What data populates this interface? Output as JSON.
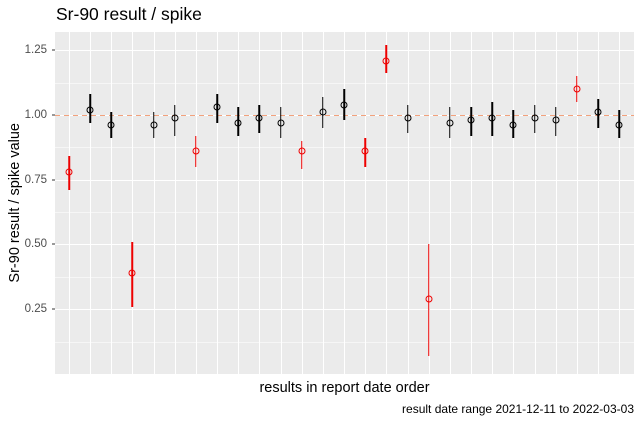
{
  "chart_data": {
    "type": "scatter",
    "subtype": "pointrange-with-error-bars",
    "title": "Sr-90 result / spike",
    "xlabel": "results in report date order",
    "ylabel": "Sr-90 result / spike value",
    "caption": "result date range 2021-12-11 to 2022-03-03",
    "legend": "none",
    "grid": true,
    "ylim": [
      0,
      1.32
    ],
    "yticks": [
      0.25,
      0.5,
      0.75,
      1.0,
      1.25
    ],
    "ytick_labels": [
      "0.25",
      "0.50",
      "0.75",
      "1.00",
      "1.25"
    ],
    "xtick_labels": [],
    "reference_line_y": 1.0,
    "colors": {
      "point_normal": "#000000",
      "point_flagged": "#ee0000",
      "reference_line": "#f2a17c",
      "panel_background": "#ebebeb",
      "gridline": "#ffffff",
      "tick_label": "#4d4d4d"
    },
    "series": [
      {
        "name": "Sr-90 result / spike ratio",
        "points": [
          {
            "x": 1,
            "y": 0.78,
            "ylo": 0.71,
            "yhi": 0.84,
            "flagged": true
          },
          {
            "x": 2,
            "y": 1.02,
            "ylo": 0.97,
            "yhi": 1.08,
            "flagged": false
          },
          {
            "x": 3,
            "y": 0.96,
            "ylo": 0.91,
            "yhi": 1.01,
            "flagged": false
          },
          {
            "x": 4,
            "y": 0.39,
            "ylo": 0.26,
            "yhi": 0.51,
            "flagged": true
          },
          {
            "x": 5,
            "y": 0.96,
            "ylo": 0.91,
            "yhi": 1.01,
            "flagged": false
          },
          {
            "x": 6,
            "y": 0.99,
            "ylo": 0.92,
            "yhi": 1.04,
            "flagged": false
          },
          {
            "x": 7,
            "y": 0.86,
            "ylo": 0.8,
            "yhi": 0.92,
            "flagged": true
          },
          {
            "x": 8,
            "y": 1.03,
            "ylo": 0.97,
            "yhi": 1.08,
            "flagged": false
          },
          {
            "x": 9,
            "y": 0.97,
            "ylo": 0.92,
            "yhi": 1.03,
            "flagged": false
          },
          {
            "x": 10,
            "y": 0.99,
            "ylo": 0.93,
            "yhi": 1.04,
            "flagged": false
          },
          {
            "x": 11,
            "y": 0.97,
            "ylo": 0.91,
            "yhi": 1.03,
            "flagged": false
          },
          {
            "x": 12,
            "y": 0.86,
            "ylo": 0.79,
            "yhi": 0.9,
            "flagged": true
          },
          {
            "x": 13,
            "y": 1.01,
            "ylo": 0.95,
            "yhi": 1.07,
            "flagged": false
          },
          {
            "x": 14,
            "y": 1.04,
            "ylo": 0.98,
            "yhi": 1.1,
            "flagged": false
          },
          {
            "x": 15,
            "y": 0.86,
            "ylo": 0.8,
            "yhi": 0.91,
            "flagged": true
          },
          {
            "x": 16,
            "y": 1.21,
            "ylo": 1.16,
            "yhi": 1.27,
            "flagged": true
          },
          {
            "x": 17,
            "y": 0.99,
            "ylo": 0.93,
            "yhi": 1.04,
            "flagged": false
          },
          {
            "x": 18,
            "y": 0.29,
            "ylo": 0.07,
            "yhi": 0.5,
            "flagged": true
          },
          {
            "x": 19,
            "y": 0.97,
            "ylo": 0.91,
            "yhi": 1.03,
            "flagged": false
          },
          {
            "x": 20,
            "y": 0.98,
            "ylo": 0.92,
            "yhi": 1.03,
            "flagged": false
          },
          {
            "x": 21,
            "y": 0.99,
            "ylo": 0.92,
            "yhi": 1.05,
            "flagged": false
          },
          {
            "x": 22,
            "y": 0.96,
            "ylo": 0.91,
            "yhi": 1.02,
            "flagged": false
          },
          {
            "x": 23,
            "y": 0.99,
            "ylo": 0.93,
            "yhi": 1.04,
            "flagged": false
          },
          {
            "x": 24,
            "y": 0.98,
            "ylo": 0.92,
            "yhi": 1.03,
            "flagged": false
          },
          {
            "x": 25,
            "y": 1.1,
            "ylo": 1.05,
            "yhi": 1.15,
            "flagged": true
          },
          {
            "x": 26,
            "y": 1.01,
            "ylo": 0.95,
            "yhi": 1.06,
            "flagged": false
          },
          {
            "x": 27,
            "y": 0.96,
            "ylo": 0.91,
            "yhi": 1.02,
            "flagged": false
          }
        ]
      }
    ]
  }
}
